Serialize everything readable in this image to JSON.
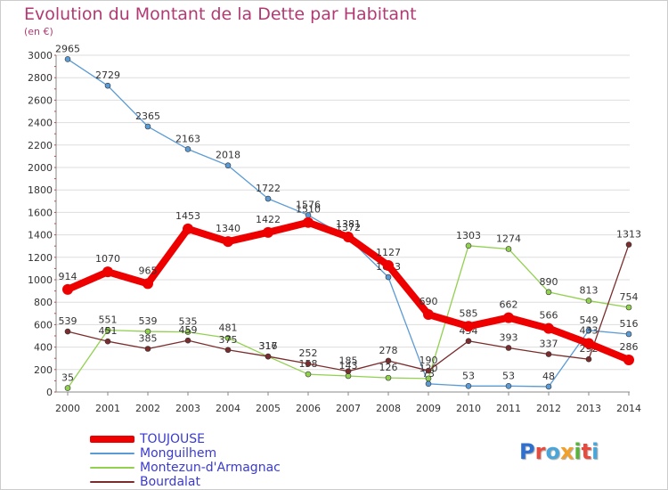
{
  "title": "Evolution du Montant de la Dette par Habitant",
  "unit_label": "(en €)",
  "logo": {
    "text": "Proxiti",
    "colors": [
      "#2f6fd0",
      "#e94a3c",
      "#4aa6d8",
      "#f2a02a",
      "#58b33c",
      "#e94a3c",
      "#4aa6d8"
    ]
  },
  "colors": {
    "background": "#ffffff",
    "grid": "#dddddd",
    "axis": "#888888",
    "title": "#b23a73",
    "legend_text": "#3a3ad0"
  },
  "chart_data": {
    "type": "line",
    "title": "Evolution du Montant de la Dette par Habitant",
    "ylabel": "(en €)",
    "xlabel": "",
    "x": [
      "2000",
      "2001",
      "2002",
      "2003",
      "2004",
      "2005",
      "2006",
      "2007",
      "2008",
      "2009",
      "2010",
      "2011",
      "2012",
      "2013",
      "2014"
    ],
    "ylim": [
      0,
      3000
    ],
    "yticks": [
      0,
      200,
      400,
      600,
      800,
      1000,
      1200,
      1400,
      1600,
      1800,
      2000,
      2200,
      2400,
      2600,
      2800,
      3000
    ],
    "grid": true,
    "legend_position": "bottom-left",
    "series": [
      {
        "name": "Monguilhem",
        "color": "#5b9bd5",
        "values": [
          2965,
          2729,
          2365,
          2163,
          2018,
          1722,
          1576,
          1372,
          1023,
          73,
          53,
          53,
          48,
          549,
          516
        ]
      },
      {
        "name": "Montezun-d'Armagnac",
        "color": "#92d050",
        "values": [
          35,
          551,
          539,
          535,
          481,
          316,
          158,
          143,
          126,
          120,
          1303,
          1274,
          890,
          813,
          754
        ]
      },
      {
        "name": "Bourdalat",
        "color": "#7b2c2c",
        "values": [
          539,
          451,
          385,
          459,
          375,
          317,
          252,
          185,
          278,
          190,
          454,
          393,
          337,
          292,
          1313
        ]
      },
      {
        "name": "TOUJOUSE",
        "color": "#ee0000",
        "values": [
          914,
          1070,
          965,
          1453,
          1340,
          1422,
          1510,
          1381,
          1127,
          690,
          585,
          662,
          566,
          433,
          286
        ]
      }
    ],
    "legend_order": [
      "TOUJOUSE",
      "Monguilhem",
      "Montezun-d'Armagnac",
      "Bourdalat"
    ]
  }
}
